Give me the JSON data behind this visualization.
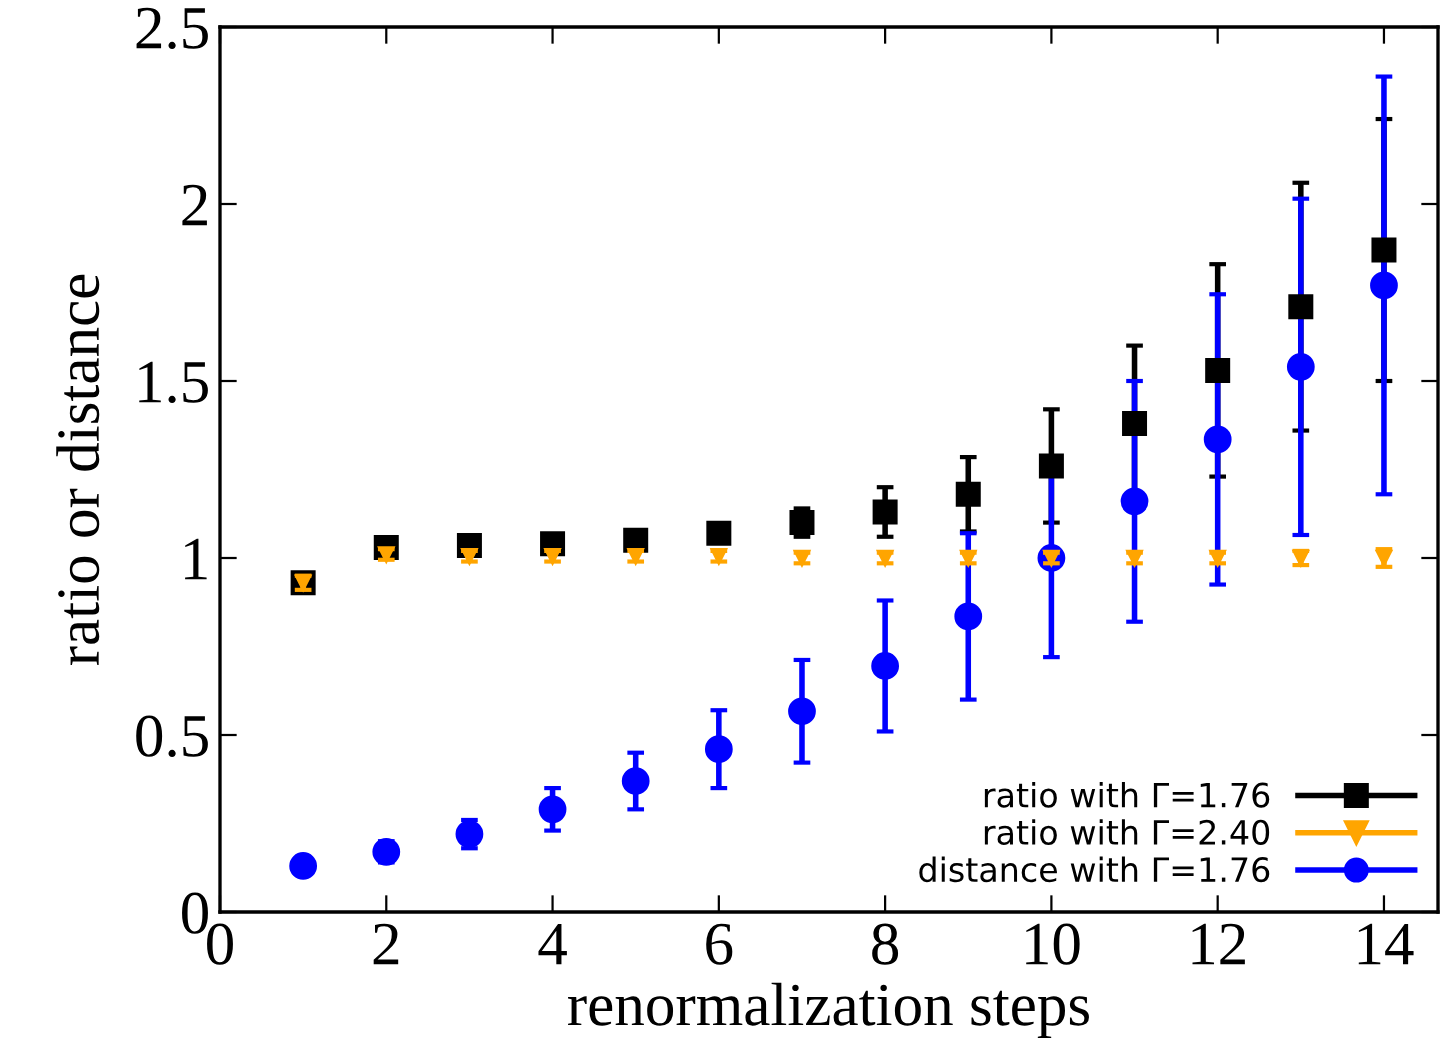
{
  "chart_data": {
    "type": "scatter",
    "xlabel": "renormalization steps",
    "ylabel": "ratio or distance",
    "x": [
      1,
      2,
      3,
      4,
      5,
      6,
      7,
      8,
      9,
      10,
      11,
      12,
      13,
      14
    ],
    "xlim": [
      0,
      14.65
    ],
    "xticks": [
      0,
      2,
      4,
      6,
      8,
      10,
      12,
      14
    ],
    "ylim": [
      0,
      2.5
    ],
    "yticks": [
      0,
      0.5,
      1,
      1.5,
      2,
      2.5
    ],
    "legend": "bottom right",
    "grid": false,
    "series": [
      {
        "name": "ratio with Γ=1.76",
        "color": "#000000",
        "marker": "square",
        "values": [
          0.93,
          1.03,
          1.035,
          1.04,
          1.05,
          1.07,
          1.1,
          1.13,
          1.18,
          1.26,
          1.38,
          1.53,
          1.71,
          1.87
        ],
        "errors": [
          0.02,
          0.01,
          0.01,
          0.01,
          0.015,
          0.02,
          0.04,
          0.07,
          0.105,
          0.16,
          0.22,
          0.3,
          0.35,
          0.37
        ]
      },
      {
        "name": "ratio with Γ=2.40",
        "color": "#ffa500",
        "marker": "triangle",
        "values": [
          0.93,
          1.01,
          1.005,
          1.005,
          1.005,
          1.005,
          1.0,
          1.0,
          1.0,
          1.0,
          1.0,
          1.0,
          1.0,
          1.0
        ],
        "errors": [
          0.02,
          0.015,
          0.015,
          0.015,
          0.015,
          0.015,
          0.015,
          0.015,
          0.015,
          0.015,
          0.015,
          0.015,
          0.02,
          0.025
        ]
      },
      {
        "name": "distance with Γ=1.76",
        "color": "#0000ff",
        "marker": "circle",
        "values": [
          0.13,
          0.17,
          0.22,
          0.29,
          0.37,
          0.46,
          0.567,
          0.695,
          0.835,
          1.0,
          1.16,
          1.335,
          1.54,
          1.77
        ],
        "errors": [
          0.01,
          0.03,
          0.04,
          0.06,
          0.08,
          0.11,
          0.145,
          0.185,
          0.235,
          0.28,
          0.34,
          0.41,
          0.475,
          0.59
        ]
      }
    ]
  }
}
